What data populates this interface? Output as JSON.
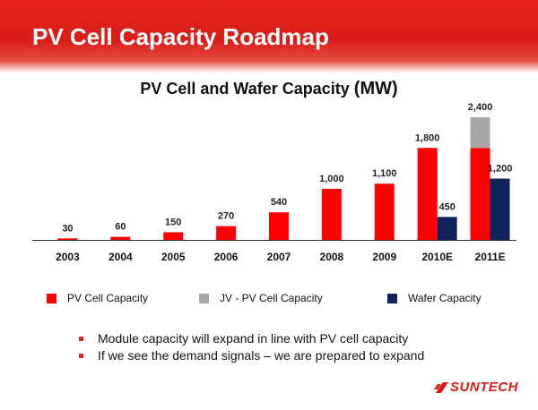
{
  "slide": {
    "title": "PV Cell Capacity Roadmap",
    "bullets": [
      "Module capacity will expand in line with PV cell capacity",
      "If we see the demand signals – we are prepared to expand"
    ],
    "logo_text": "SUNTECH",
    "colors": {
      "banner": "#e8231e",
      "accent": "#e8231e"
    }
  },
  "chart_data": {
    "type": "bar",
    "title": "PV Cell and Wafer Capacity",
    "title_unit": "(MW)",
    "categories": [
      "2003",
      "2004",
      "2005",
      "2006",
      "2007",
      "2008",
      "2009",
      "2010E",
      "2011E"
    ],
    "series": [
      {
        "name": "PV Cell Capacity",
        "color": "#ff0000",
        "stack": "cell",
        "values": [
          30,
          60,
          150,
          270,
          540,
          1000,
          1100,
          1800,
          1800
        ]
      },
      {
        "name": "JV - PV Cell Capacity",
        "color": "#a6a6a6",
        "stack": "cell",
        "values": [
          0,
          0,
          0,
          0,
          0,
          0,
          0,
          0,
          600
        ]
      },
      {
        "name": "Wafer Capacity",
        "color": "#10235a",
        "stack": "wafer",
        "values": [
          0,
          0,
          0,
          0,
          0,
          0,
          0,
          450,
          1200
        ]
      }
    ],
    "data_labels": [
      {
        "category": "2003",
        "text": "30",
        "anchor": "cell"
      },
      {
        "category": "2004",
        "text": "60",
        "anchor": "cell"
      },
      {
        "category": "2005",
        "text": "150",
        "anchor": "cell"
      },
      {
        "category": "2006",
        "text": "270",
        "anchor": "cell"
      },
      {
        "category": "2007",
        "text": "540",
        "anchor": "cell"
      },
      {
        "category": "2008",
        "text": "1,000",
        "anchor": "cell"
      },
      {
        "category": "2009",
        "text": "1,100",
        "anchor": "cell"
      },
      {
        "category": "2010E",
        "text": "1,800",
        "anchor": "cell"
      },
      {
        "category": "2010E",
        "text": "450",
        "anchor": "wafer"
      },
      {
        "category": "2011E",
        "text": "2,400",
        "anchor": "cell"
      },
      {
        "category": "2011E",
        "text": "1,200",
        "anchor": "wafer"
      }
    ],
    "ylim": [
      0,
      2400
    ],
    "xlabel": "",
    "ylabel": "",
    "grid": false,
    "legend": "bottom"
  }
}
